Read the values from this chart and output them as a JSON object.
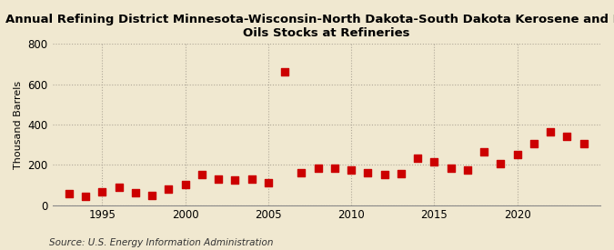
{
  "title": "Annual Refining District Minnesota-Wisconsin-North Dakota-South Dakota Kerosene and Light\nOils Stocks at Refineries",
  "ylabel": "Thousand Barrels",
  "source": "Source: U.S. Energy Information Administration",
  "background_color": "#f0e8d0",
  "plot_bg_color": "#f0e8d0",
  "dot_color": "#cc0000",
  "years": [
    1993,
    1994,
    1995,
    1996,
    1997,
    1998,
    1999,
    2000,
    2001,
    2002,
    2003,
    2004,
    2005,
    2006,
    2007,
    2008,
    2009,
    2010,
    2011,
    2012,
    2013,
    2014,
    2015,
    2016,
    2017,
    2018,
    2019,
    2020,
    2021,
    2022,
    2023,
    2024
  ],
  "values": [
    55,
    45,
    65,
    90,
    60,
    48,
    78,
    100,
    150,
    130,
    125,
    130,
    110,
    660,
    160,
    185,
    185,
    175,
    160,
    150,
    155,
    235,
    215,
    185,
    175,
    265,
    205,
    250,
    305,
    365,
    340,
    305
  ],
  "xlim": [
    1992,
    2025
  ],
  "ylim": [
    0,
    800
  ],
  "yticks": [
    0,
    200,
    400,
    600,
    800
  ],
  "xticks": [
    1995,
    2000,
    2005,
    2010,
    2015,
    2020
  ],
  "grid_color": "#b0a898",
  "title_fontsize": 9.5,
  "label_fontsize": 8,
  "tick_fontsize": 8.5,
  "source_fontsize": 7.5,
  "marker_size": 28
}
